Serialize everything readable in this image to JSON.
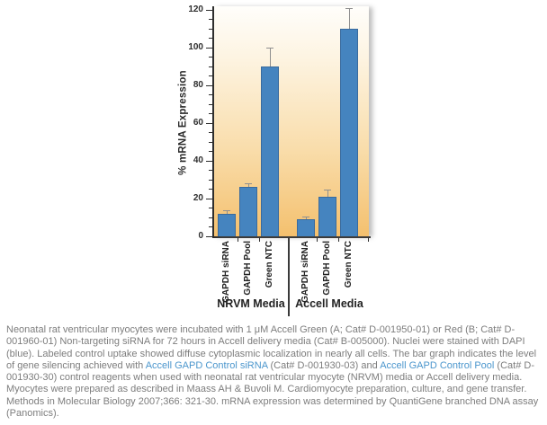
{
  "chart_data": {
    "type": "bar",
    "title": "",
    "ylabel": "% mRNA Expression",
    "ylim": [
      0,
      120
    ],
    "yticks": [
      0,
      20,
      40,
      60,
      80,
      100,
      120
    ],
    "ytick_minor_step": 5,
    "grid": false,
    "legend": "none",
    "bar_color": "#4584bf",
    "bar_edge_color": "#3a6b9e",
    "error_bar_color": "#8f8f8f",
    "background_gradient": [
      "#fffefb",
      "#f4c06e"
    ],
    "groups": [
      {
        "label": "NRVM Media",
        "categories": [
          "GAPDH siRNA",
          "GAPDH Pool",
          "Green NTC"
        ],
        "values": [
          12,
          26,
          90
        ],
        "errors": [
          2,
          2,
          10
        ]
      },
      {
        "label": "Accell Media",
        "categories": [
          "GAPDH siRNA",
          "GAPDH Pool",
          "Green NTC"
        ],
        "values": [
          9,
          21,
          110
        ],
        "errors": [
          1.5,
          4,
          11
        ]
      }
    ]
  },
  "caption": {
    "segments": [
      {
        "type": "text",
        "text": "Neonatal rat ventricular myocytes were incubated with 1 μM Accell Green (A; Cat# D-001950-01) or Red (B; Cat# D-001960-01) Non-targeting siRNA for 72 hours in Accell delivery media (Cat# B-005000). Nuclei were stained with DAPI (blue). Labeled control uptake showed diffuse cytoplasmic localization in nearly all cells. The bar graph indicates the level of gene silencing achieved with "
      },
      {
        "type": "link",
        "text": "Accell GAPD Control siRNA"
      },
      {
        "type": "text",
        "text": " (Cat# D-001930-03) and "
      },
      {
        "type": "link",
        "text": "Accell GAPD Control Pool"
      },
      {
        "type": "text",
        "text": " (Cat# D-001930-30) control reagents when used with neonatal rat ventricular myocyte (NRVM) media or Accell delivery media. Myocytes were prepared as described in Maass AH & Buvoli M. Cardiomyocyte preparation, culture, and gene transfer. Methods in Molecular Biology 2007;366: 321-30. mRNA expression was determined by QuantiGene branched DNA assay (Panomics)."
      }
    ]
  }
}
